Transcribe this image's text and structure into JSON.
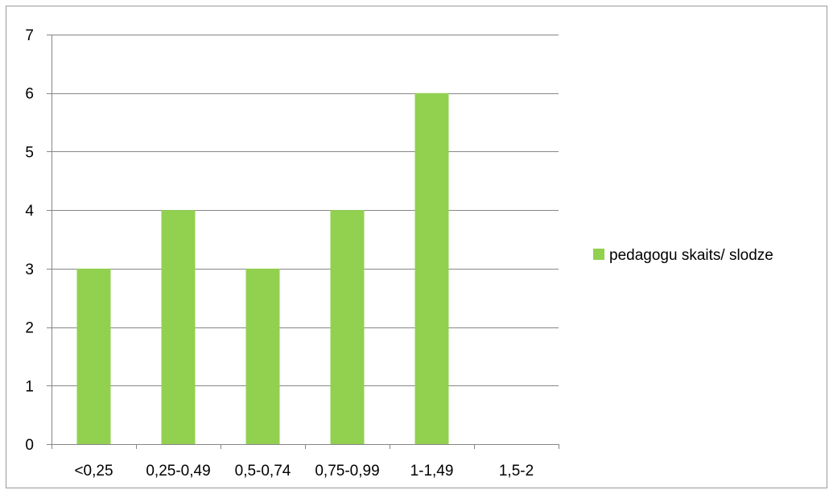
{
  "chart_data": {
    "type": "bar",
    "title": "",
    "xlabel": "",
    "ylabel": "",
    "categories": [
      "<0,25",
      "0,25-0,49",
      "0,5-0,74",
      "0,75-0,99",
      "1-1,49",
      "1,5-2"
    ],
    "series": [
      {
        "name": "pedagogu skaits/ slodze",
        "values": [
          3,
          4,
          3,
          4,
          6,
          0
        ],
        "color": "#92D050"
      }
    ],
    "ylim": [
      0,
      7
    ],
    "yticks": [
      0,
      1,
      2,
      3,
      4,
      5,
      6,
      7
    ],
    "grid": true,
    "legend_position": "right",
    "colors": {
      "gridline": "#868686",
      "axis": "#868686",
      "frame": "#9a9a9a"
    }
  }
}
